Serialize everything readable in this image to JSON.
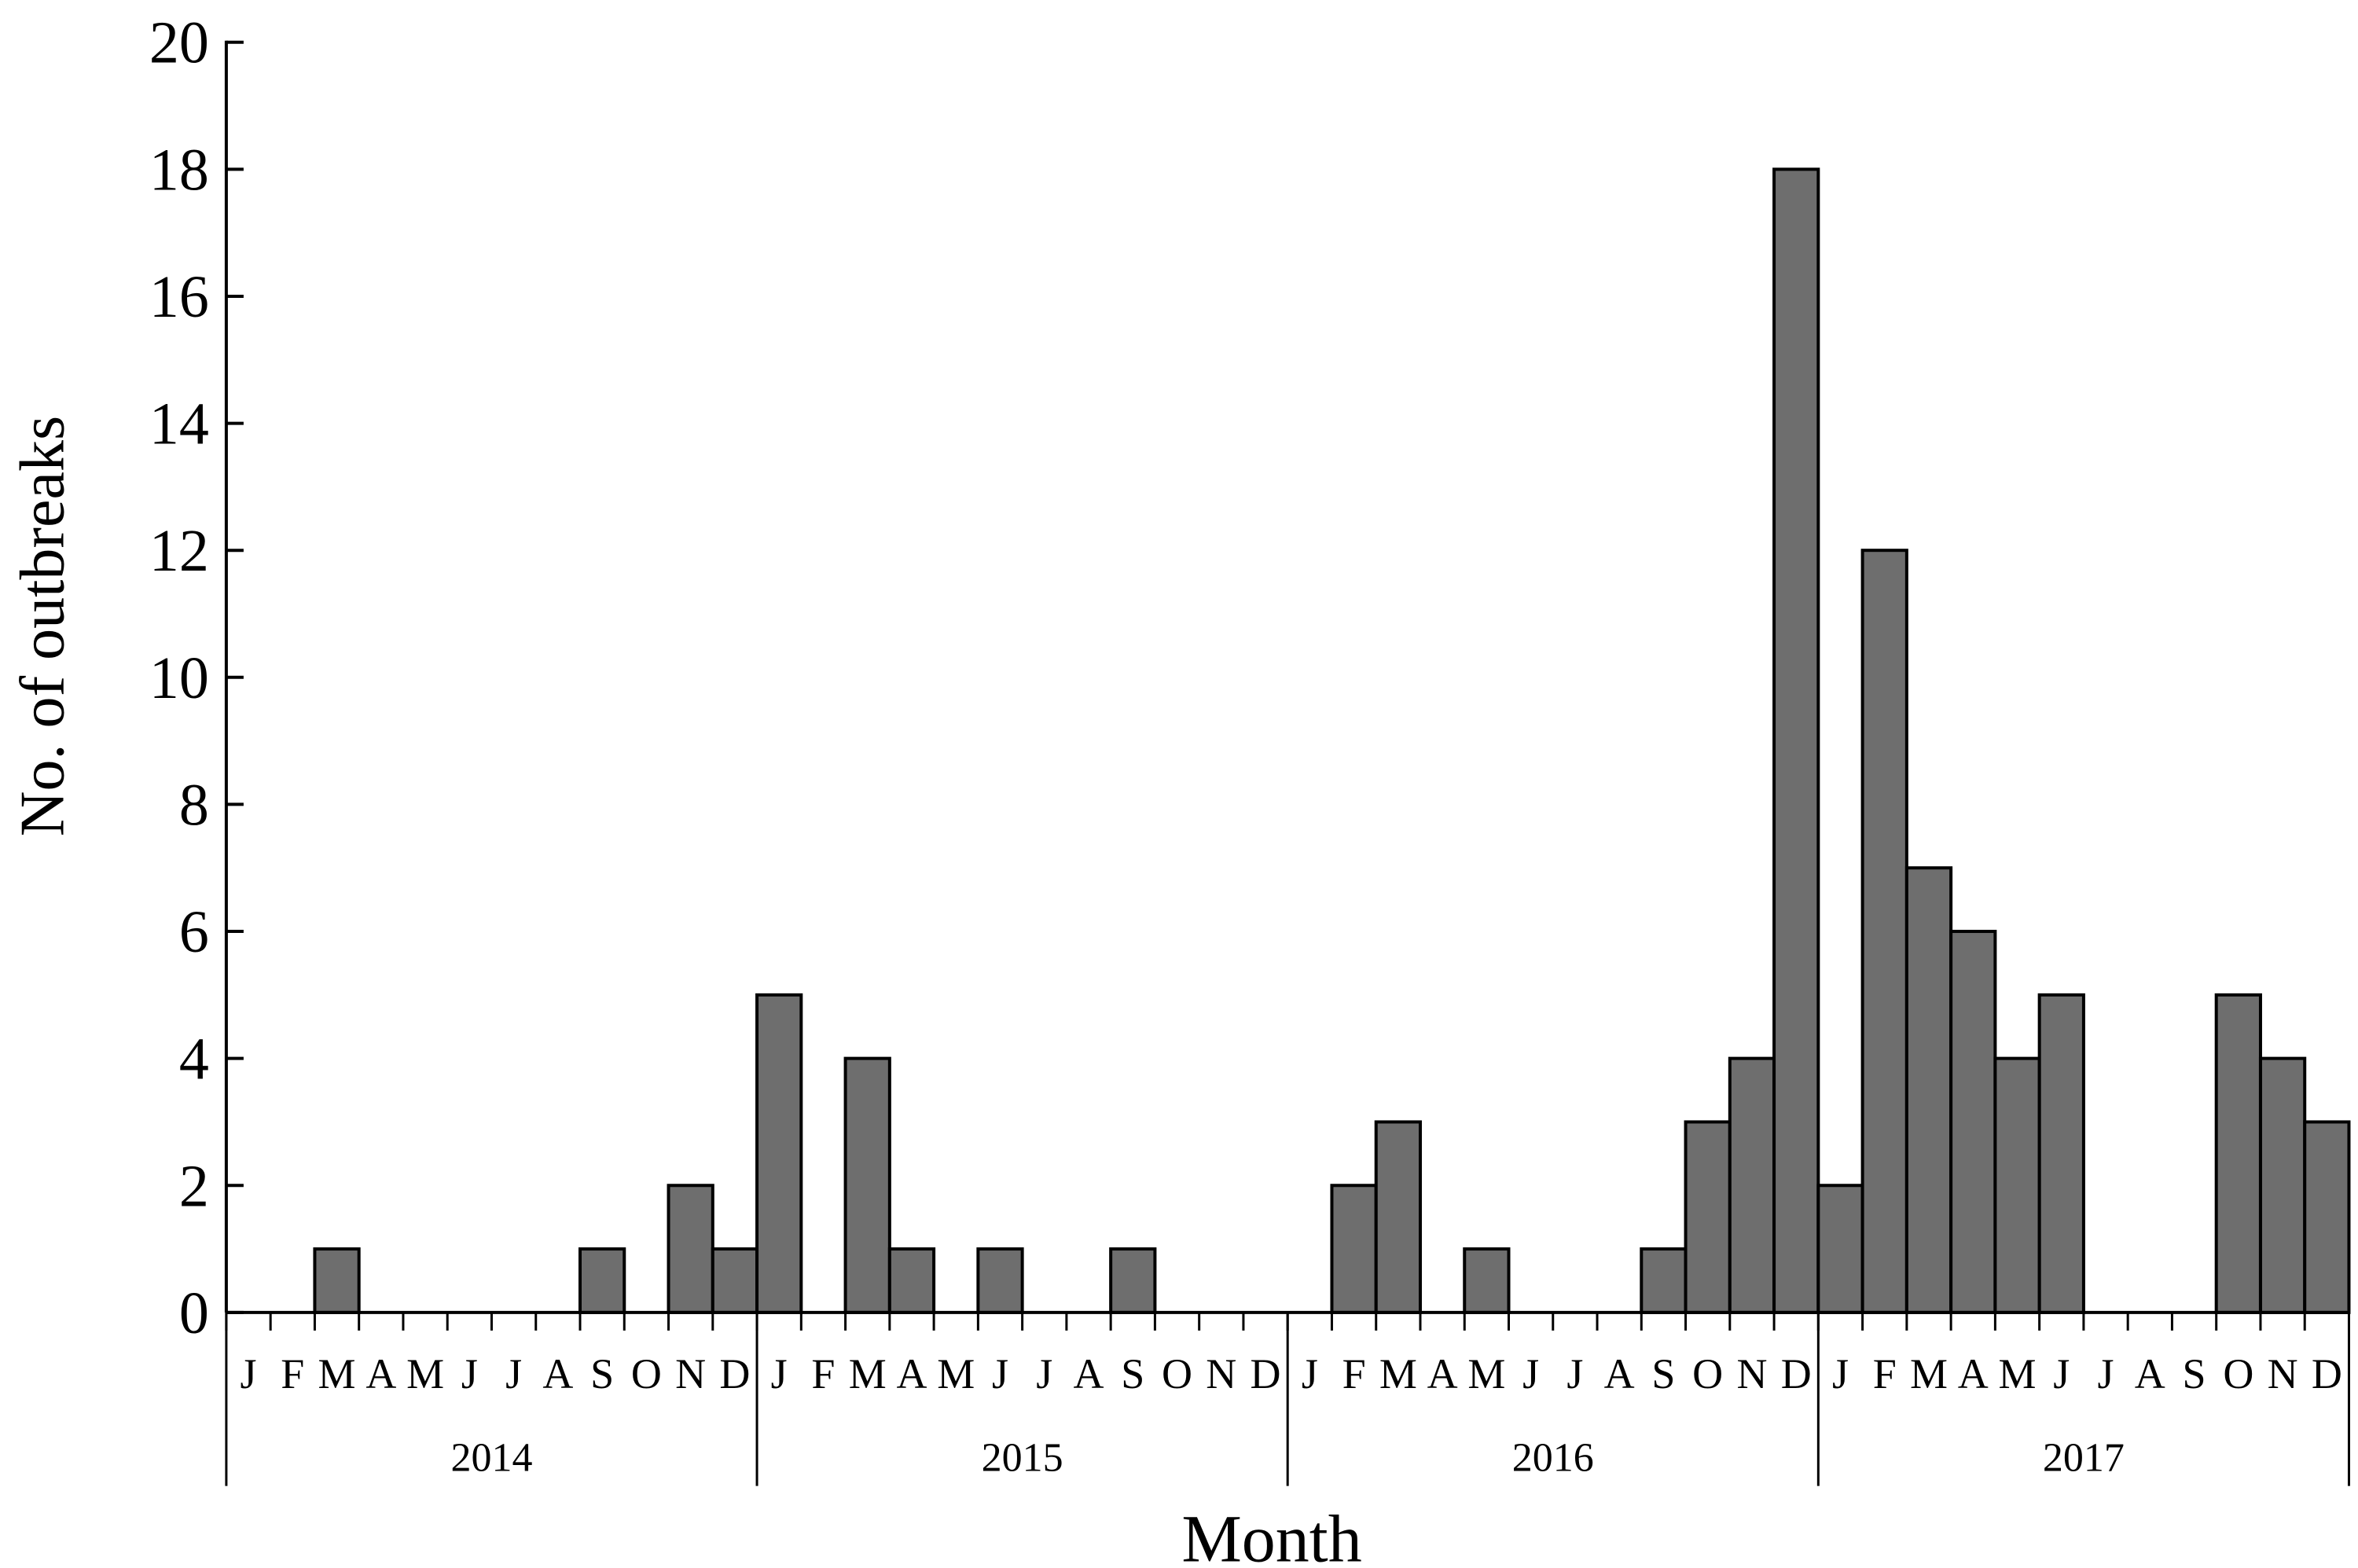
{
  "chart_data": {
    "type": "bar",
    "title": "",
    "xlabel": "Month",
    "ylabel": "No. of outbreaks",
    "ylim": [
      0,
      20
    ],
    "y_ticks": [
      "0",
      "2",
      "4",
      "6",
      "8",
      "10",
      "12",
      "14",
      "16",
      "18",
      "20"
    ],
    "grid": false,
    "legend": "none",
    "bar_color": "#6e6e6e",
    "month_labels": [
      "J",
      "F",
      "M",
      "A",
      "M",
      "J",
      "J",
      "A",
      "S",
      "O",
      "N",
      "D"
    ],
    "years": [
      "2014",
      "2015",
      "2016",
      "2017"
    ],
    "categories": [
      "2014-J",
      "2014-F",
      "2014-M",
      "2014-A",
      "2014-M",
      "2014-J",
      "2014-J",
      "2014-A",
      "2014-S",
      "2014-O",
      "2014-N",
      "2014-D",
      "2015-J",
      "2015-F",
      "2015-M",
      "2015-A",
      "2015-M",
      "2015-J",
      "2015-J",
      "2015-A",
      "2015-S",
      "2015-O",
      "2015-N",
      "2015-D",
      "2016-J",
      "2016-F",
      "2016-M",
      "2016-A",
      "2016-M",
      "2016-J",
      "2016-J",
      "2016-A",
      "2016-S",
      "2016-O",
      "2016-N",
      "2016-D",
      "2017-J",
      "2017-F",
      "2017-M",
      "2017-A",
      "2017-M",
      "2017-J",
      "2017-J",
      "2017-A",
      "2017-S",
      "2017-O",
      "2017-N",
      "2017-D"
    ],
    "values": [
      0,
      0,
      1,
      0,
      0,
      0,
      0,
      0,
      1,
      0,
      2,
      1,
      5,
      0,
      4,
      1,
      0,
      1,
      0,
      0,
      1,
      0,
      0,
      0,
      0,
      2,
      3,
      0,
      1,
      0,
      0,
      0,
      1,
      3,
      4,
      18,
      2,
      12,
      7,
      6,
      4,
      5,
      0,
      0,
      0,
      5,
      4,
      3
    ]
  }
}
